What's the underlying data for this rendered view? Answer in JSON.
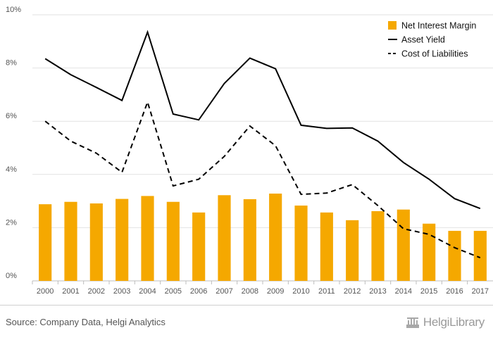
{
  "chart_data": {
    "type": "bar+line",
    "categories": [
      "2000",
      "2001",
      "2002",
      "2003",
      "2004",
      "2005",
      "2006",
      "2007",
      "2008",
      "2009",
      "2010",
      "2011",
      "2012",
      "2013",
      "2014",
      "2015",
      "2016",
      "2017"
    ],
    "yticks": [
      "0%",
      "2%",
      "4%",
      "6%",
      "8%",
      "10%"
    ],
    "ylim": [
      0,
      10
    ],
    "grid": true,
    "legend_position": "top-right",
    "series": [
      {
        "name": "Net Interest Margin",
        "kind": "bar",
        "color": "#f5a800",
        "values": [
          2.88,
          2.97,
          2.91,
          3.08,
          3.19,
          2.97,
          2.57,
          3.22,
          3.07,
          3.28,
          2.83,
          2.57,
          2.28,
          2.62,
          2.68,
          2.15,
          1.88,
          1.88
        ]
      },
      {
        "name": "Asset Yield",
        "kind": "line",
        "style": "solid",
        "color": "#000000",
        "values": [
          8.35,
          7.75,
          7.27,
          6.78,
          9.35,
          6.27,
          6.05,
          7.42,
          8.37,
          7.97,
          5.85,
          5.73,
          5.75,
          5.25,
          4.45,
          3.82,
          3.09,
          2.72
        ]
      },
      {
        "name": "Cost of Liabilities",
        "kind": "line",
        "style": "dashed",
        "color": "#000000",
        "values": [
          6.0,
          5.25,
          4.8,
          4.08,
          6.72,
          3.57,
          3.82,
          4.68,
          5.82,
          5.08,
          3.25,
          3.3,
          3.62,
          2.83,
          1.96,
          1.75,
          1.25,
          0.87
        ]
      }
    ]
  },
  "footer": {
    "source": "Source: Company Data, Helgi Analytics",
    "logo_text": "HelgiLibrary"
  }
}
